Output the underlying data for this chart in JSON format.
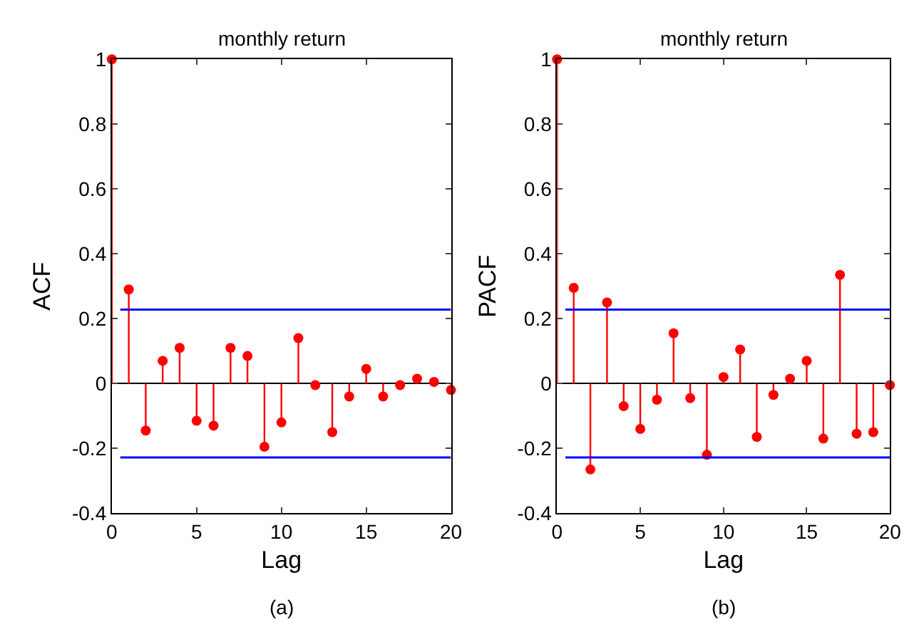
{
  "chart_data": [
    {
      "type": "lollipop",
      "title": "monthly return",
      "xlabel": "Lag",
      "ylabel": "ACF",
      "annotations": [
        "(a)"
      ],
      "x": [
        0,
        1,
        2,
        3,
        4,
        5,
        6,
        7,
        8,
        9,
        10,
        11,
        12,
        13,
        14,
        15,
        16,
        17,
        18,
        19,
        20
      ],
      "series": [
        {
          "color": "#ff0000",
          "values": [
            1,
            0.29,
            -0.145,
            0.07,
            0.11,
            -0.115,
            -0.13,
            0.11,
            0.085,
            -0.195,
            -0.12,
            0.14,
            -0.005,
            -0.15,
            -0.04,
            0.045,
            -0.04,
            -0.005,
            0.015,
            0.005,
            -0.02
          ]
        }
      ],
      "ref_lines": [
        {
          "axis": "y",
          "value": 0.228,
          "color": "#0000ff"
        },
        {
          "axis": "y",
          "value": -0.228,
          "color": "#0000ff"
        }
      ],
      "xlim": [
        0,
        20
      ],
      "ylim": [
        -0.4,
        1
      ],
      "xticks": [
        0,
        5,
        10,
        15,
        20
      ],
      "yticks": [
        -0.4,
        -0.2,
        0,
        0.2,
        0.4,
        0.6,
        0.8,
        1
      ],
      "marker": "circle"
    },
    {
      "type": "lollipop",
      "title": "monthly return",
      "xlabel": "Lag",
      "ylabel": "PACF",
      "annotations": [
        "(b)"
      ],
      "x": [
        0,
        1,
        2,
        3,
        4,
        5,
        6,
        7,
        8,
        9,
        10,
        11,
        12,
        13,
        14,
        15,
        16,
        17,
        18,
        19,
        20
      ],
      "series": [
        {
          "color": "#ff0000",
          "values": [
            1,
            0.295,
            -0.265,
            0.25,
            -0.07,
            -0.14,
            -0.05,
            0.155,
            -0.045,
            -0.22,
            0.02,
            0.105,
            -0.165,
            -0.035,
            0.015,
            0.07,
            -0.17,
            0.335,
            -0.155,
            -0.15,
            -0.005
          ]
        }
      ],
      "ref_lines": [
        {
          "axis": "y",
          "value": 0.228,
          "color": "#0000ff"
        },
        {
          "axis": "y",
          "value": -0.228,
          "color": "#0000ff"
        }
      ],
      "xlim": [
        0,
        20
      ],
      "ylim": [
        -0.4,
        1
      ],
      "xticks": [
        0,
        5,
        10,
        15,
        20
      ],
      "yticks": [
        -0.4,
        -0.2,
        0,
        0.2,
        0.4,
        0.6,
        0.8,
        1
      ],
      "marker": "circle"
    }
  ]
}
